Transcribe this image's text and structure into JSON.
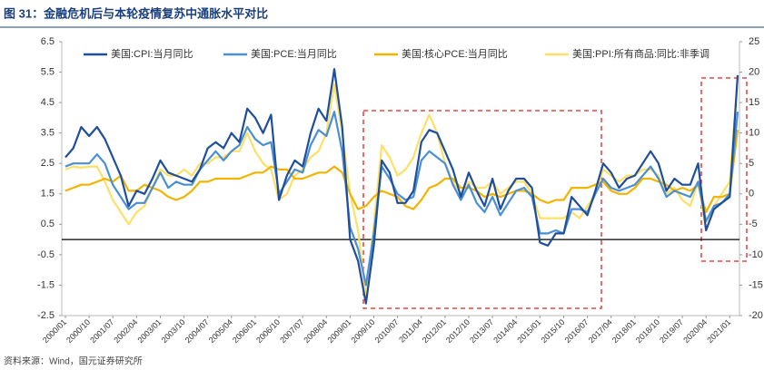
{
  "chart_data": {
    "type": "line",
    "title": "图 31：金融危机后与本轮疫情复苏中通胀水平对比",
    "source": "资料来源：Wind，国元证券研究所",
    "categories": [
      "2000/01",
      null,
      null,
      "2000/10",
      null,
      null,
      "2001/07",
      null,
      null,
      "2002/04",
      null,
      null,
      "2003/01",
      null,
      null,
      "2003/10",
      null,
      null,
      "2004/07",
      null,
      null,
      "2005/04",
      null,
      null,
      "2006/01",
      null,
      null,
      "2006/10",
      null,
      null,
      "2007/07",
      null,
      null,
      "2008/04",
      null,
      null,
      "2009/01",
      null,
      null,
      "2009/10",
      null,
      null,
      "2010/07",
      null,
      null,
      "2011/04",
      null,
      null,
      "2012/01",
      null,
      null,
      "2012/10",
      null,
      null,
      "2013/07",
      null,
      null,
      "2014/04",
      null,
      null,
      "2015/01",
      null,
      null,
      "2015/10",
      null,
      null,
      "2016/07",
      null,
      null,
      "2017/04",
      null,
      null,
      "2018/01",
      null,
      null,
      "2018/10",
      null,
      null,
      "2019/07",
      null,
      null,
      "2020/04",
      null,
      null,
      "2021/01",
      null
    ],
    "series": [
      {
        "name": "美国:CPI:当月同比",
        "color": "#1f4e9c",
        "values": [
          2.7,
          3.0,
          3.7,
          3.4,
          3.7,
          3.3,
          2.7,
          2.1,
          1.1,
          1.6,
          1.5,
          2.0,
          2.6,
          2.2,
          2.1,
          2.0,
          1.9,
          2.3,
          3.0,
          3.2,
          3.0,
          3.5,
          3.2,
          4.3,
          4.0,
          3.5,
          4.1,
          1.3,
          2.1,
          2.6,
          2.4,
          3.5,
          4.3,
          3.9,
          5.6,
          3.7,
          0.0,
          -0.7,
          -2.1,
          -0.2,
          2.6,
          2.2,
          1.2,
          1.2,
          1.6,
          3.2,
          3.6,
          3.5,
          2.9,
          2.3,
          1.4,
          2.2,
          1.6,
          1.1,
          2.0,
          1.0,
          1.6,
          2.0,
          2.0,
          1.7,
          -0.1,
          -0.2,
          0.2,
          0.2,
          1.4,
          1.1,
          0.8,
          1.6,
          2.5,
          2.2,
          1.7,
          2.0,
          2.1,
          2.5,
          2.9,
          2.5,
          1.6,
          2.0,
          1.8,
          1.8,
          2.5,
          0.3,
          1.0,
          1.2,
          1.4,
          5.4
        ]
      },
      {
        "name": "美国:PCE:当月同比",
        "color": "#4a8fd6",
        "values": [
          2.4,
          2.5,
          2.5,
          2.5,
          2.8,
          2.5,
          1.8,
          1.4,
          1.0,
          1.2,
          1.2,
          1.7,
          2.2,
          1.7,
          1.9,
          1.8,
          1.8,
          2.3,
          2.6,
          2.9,
          2.6,
          2.9,
          3.1,
          3.7,
          3.3,
          3.1,
          3.2,
          1.5,
          1.9,
          2.3,
          2.2,
          3.1,
          3.6,
          3.4,
          4.2,
          2.9,
          0.4,
          -0.3,
          -1.5,
          0.2,
          2.4,
          2.0,
          1.5,
          1.3,
          1.4,
          2.6,
          2.9,
          2.7,
          2.5,
          1.8,
          1.3,
          1.8,
          1.2,
          0.9,
          1.4,
          0.8,
          1.2,
          1.6,
          1.7,
          1.4,
          0.2,
          0.2,
          0.3,
          0.2,
          1.0,
          1.0,
          0.9,
          1.5,
          2.0,
          1.7,
          1.6,
          1.7,
          1.8,
          2.1,
          2.4,
          2.0,
          1.4,
          1.6,
          1.5,
          1.4,
          1.9,
          0.6,
          1.1,
          1.2,
          1.5,
          4.2
        ]
      },
      {
        "name": "美国:核心PCE:当月同比",
        "color": "#f2b400",
        "values": [
          1.6,
          1.7,
          1.8,
          1.8,
          1.9,
          2.0,
          1.9,
          2.1,
          1.6,
          1.6,
          1.8,
          1.7,
          1.6,
          1.4,
          1.3,
          1.4,
          1.6,
          1.9,
          1.9,
          2.0,
          2.0,
          2.0,
          2.0,
          2.1,
          2.2,
          2.2,
          2.4,
          2.3,
          2.3,
          2.0,
          2.0,
          2.1,
          2.2,
          2.2,
          2.4,
          2.2,
          1.5,
          1.0,
          1.1,
          1.4,
          1.6,
          1.5,
          1.4,
          1.1,
          1.0,
          1.3,
          1.7,
          1.8,
          2.0,
          2.0,
          1.7,
          1.7,
          1.6,
          1.4,
          1.5,
          1.4,
          1.5,
          1.6,
          1.6,
          1.5,
          1.3,
          1.2,
          1.3,
          1.3,
          1.7,
          1.7,
          1.7,
          1.8,
          1.9,
          1.6,
          1.5,
          1.5,
          1.7,
          2.0,
          2.0,
          1.9,
          1.8,
          1.6,
          1.7,
          1.6,
          1.8,
          0.9,
          1.4,
          1.4,
          1.5,
          3.6
        ]
      },
      {
        "name": "美国:PPI:所有商品:同比:非季调",
        "color": "#ffe066",
        "axis": "y2",
        "values": [
          4,
          4.5,
          4.3,
          4.5,
          4.5,
          2,
          -1,
          -3,
          -5,
          -3,
          -2,
          1,
          4,
          3,
          3,
          4,
          3,
          5,
          5,
          6,
          6,
          7,
          7,
          10,
          7,
          5,
          4,
          -1,
          0,
          3,
          4,
          6,
          7,
          10,
          18,
          10,
          0,
          -6,
          -17,
          -5,
          8,
          6,
          3,
          4,
          6,
          10,
          13,
          10,
          5,
          2,
          0,
          2,
          1,
          1,
          2,
          0,
          1,
          2,
          2,
          0,
          -4,
          -4,
          -4,
          -4,
          -3,
          -4,
          -2,
          0,
          4,
          3,
          2,
          3,
          3,
          4,
          4,
          3,
          0,
          1,
          -1,
          -2,
          2,
          -6,
          -2,
          0,
          2,
          19
        ]
      }
    ],
    "ylim": [
      -2.5,
      6.5
    ],
    "yticks": [
      -2.5,
      -1.5,
      -0.5,
      0.5,
      1.5,
      2.5,
      3.5,
      4.5,
      5.5,
      6.5
    ],
    "y2lim": [
      -20,
      25
    ],
    "y2ticks": [
      -20,
      -15,
      -10,
      -5,
      0,
      5,
      10,
      15,
      20,
      25
    ],
    "grid": false,
    "legend": "top"
  }
}
